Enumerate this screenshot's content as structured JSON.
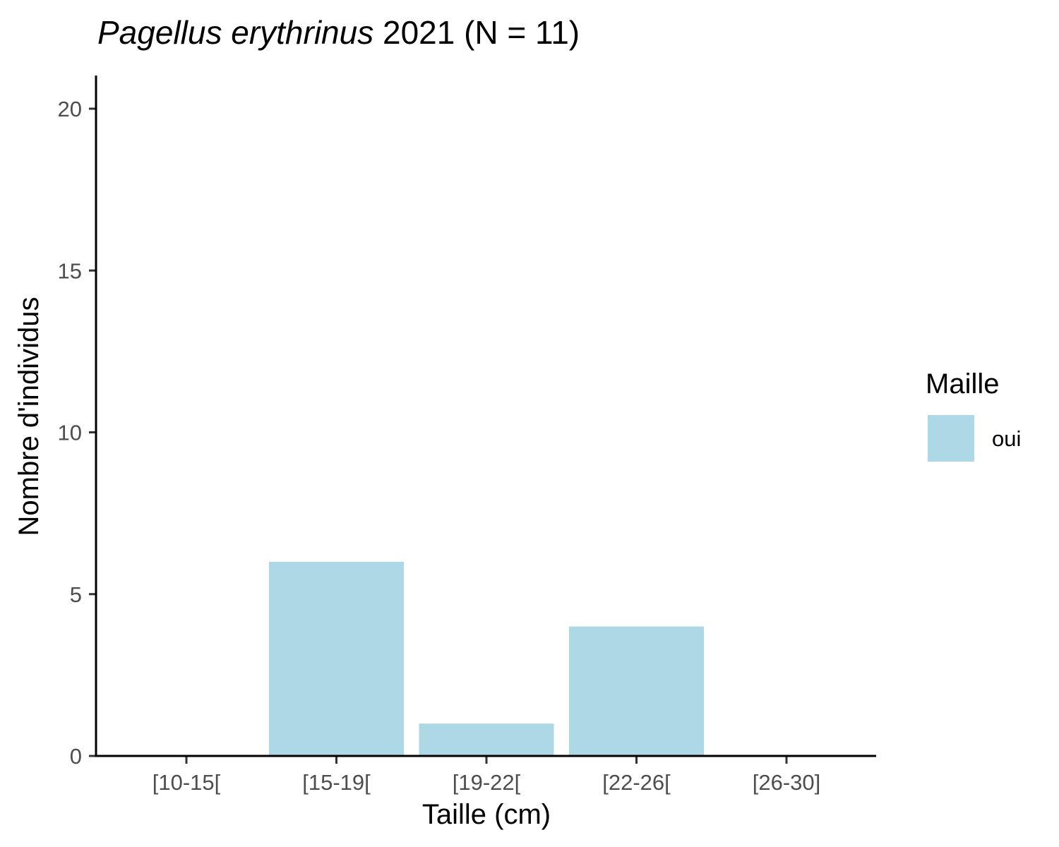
{
  "chart_data": {
    "type": "bar",
    "title_species": "Pagellus erythrinus",
    "title_rest": " 2021 (N = 11)",
    "xlabel": "Taille (cm)",
    "ylabel": "Nombre d'individus",
    "categories": [
      "[10-15[",
      "[15-19[",
      "[19-22[",
      "[22-26[",
      "[26-30]"
    ],
    "series": [
      {
        "name": "oui",
        "values": [
          0,
          6,
          1,
          4,
          0
        ],
        "color": "#add8e6"
      }
    ],
    "ylim": [
      0,
      21
    ],
    "yticks": [
      0,
      5,
      10,
      15,
      20
    ],
    "legend": {
      "title": "Maille",
      "position": "right"
    },
    "grid": false
  }
}
